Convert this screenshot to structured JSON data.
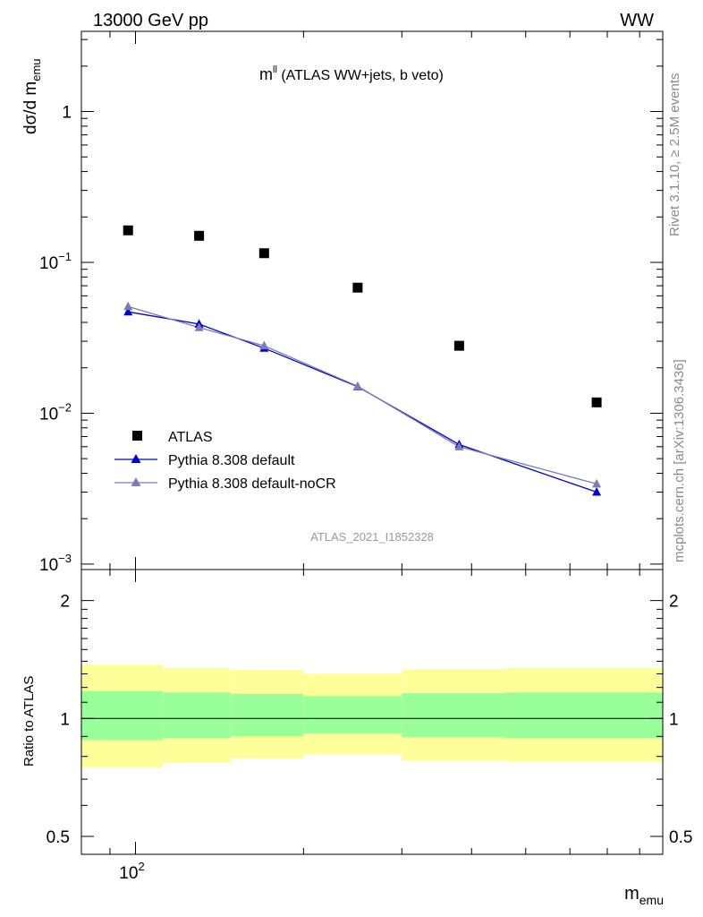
{
  "header": {
    "left": "13000 GeV pp",
    "right": "WW"
  },
  "side_labels": {
    "rivet": "Rivet 3.1.10, ≥ 2.5M events",
    "mcplots": "mcplots.cern.ch [arXiv:1306.3436]"
  },
  "colors": {
    "atlas": "#000000",
    "default": "#0000cc",
    "nocr": "#7b7bb8",
    "band_outer": "#ffff99",
    "band_inner": "#99ff99"
  },
  "chart_data": [
    {
      "type": "scatter",
      "title_main": "m",
      "title_sup": "ll",
      "title_rest": " (ATLAS WW+jets, b veto)",
      "ylabel": "dσ/d m",
      "ylabel_sub": "emu",
      "yscale": "log",
      "xscale": "log",
      "ylim": [
        0.00092,
        3.4
      ],
      "xlim": [
        80,
        880
      ],
      "watermark": "ATLAS_2021_I1852328",
      "ytick_labels": [
        {
          "value": 1,
          "base": "1",
          "exp": ""
        },
        {
          "value": 0.1,
          "base": "10",
          "exp": "−1"
        },
        {
          "value": 0.01,
          "base": "10",
          "exp": "−2"
        },
        {
          "value": 0.001,
          "base": "10",
          "exp": "−3"
        }
      ],
      "x": [
        97,
        130,
        170,
        250,
        380,
        670
      ],
      "x_edges": [
        80,
        112,
        148,
        200,
        300,
        460,
        880
      ],
      "legend": {
        "placement": "lower-left",
        "entries": [
          "ATLAS",
          "Pythia 8.308 default",
          "Pythia 8.308 default-noCR"
        ]
      },
      "series": [
        {
          "name": "ATLAS",
          "marker": "square",
          "values": [
            0.163,
            0.15,
            0.115,
            0.068,
            0.028,
            0.0118
          ]
        },
        {
          "name": "Pythia 8.308 default",
          "marker": "triangle",
          "values": [
            0.047,
            0.039,
            0.027,
            0.015,
            0.0062,
            0.003
          ]
        },
        {
          "name": "Pythia 8.308 default-noCR",
          "marker": "triangle",
          "values": [
            0.051,
            0.037,
            0.028,
            0.0151,
            0.006,
            0.0034
          ]
        }
      ]
    },
    {
      "type": "area",
      "ylabel": "Ratio to ATLAS",
      "yscale": "log",
      "ylim": [
        0.45,
        2.4
      ],
      "ytick_labels": [
        {
          "value": 0.5,
          "label": "0.5"
        },
        {
          "value": 1,
          "label": "1"
        },
        {
          "value": 2,
          "label": "2"
        }
      ],
      "xlabel": "m",
      "xlabel_sub": "emu",
      "xtick_labels": [
        {
          "value": 100,
          "base": "10",
          "exp": "2"
        }
      ],
      "reference_line": 1,
      "bands": {
        "outer_low": [
          0.75,
          0.77,
          0.79,
          0.81,
          0.78,
          0.775
        ],
        "outer_high": [
          1.37,
          1.345,
          1.33,
          1.3,
          1.335,
          1.345
        ],
        "inner_low": [
          0.88,
          0.89,
          0.9,
          0.915,
          0.895,
          0.89
        ],
        "inner_high": [
          1.175,
          1.165,
          1.155,
          1.14,
          1.16,
          1.165
        ]
      }
    }
  ]
}
